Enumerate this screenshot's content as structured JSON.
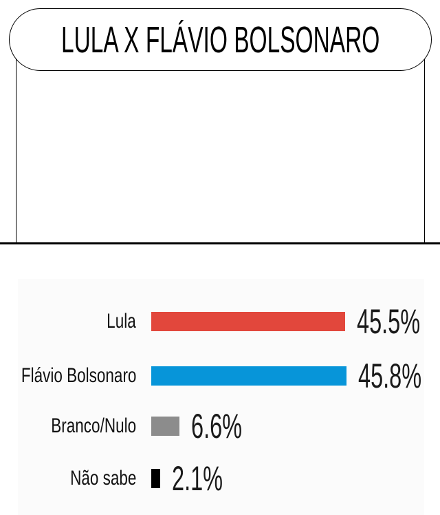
{
  "title": "LULA X FLÁVIO BOLSONARO",
  "chart_data": {
    "type": "bar",
    "orientation": "horizontal",
    "title": "LULA X FLÁVIO BOLSONARO",
    "categories": [
      "Lula",
      "Flávio Bolsonaro",
      "Branco/Nulo",
      "Não sabe"
    ],
    "values": [
      45.5,
      45.8,
      6.6,
      2.1
    ],
    "value_labels": [
      "45.5%",
      "45.8%",
      "6.6%",
      "2.1%"
    ],
    "bar_colors": [
      "#E2473C",
      "#0795D9",
      "#8C8C8C",
      "#000000"
    ],
    "xlim": [
      0,
      100
    ],
    "grid": false,
    "legend_position": "none"
  },
  "colors": {
    "red": "#E2473C",
    "blue": "#0795D9",
    "gray": "#8C8C8C",
    "black": "#000000",
    "panel_background": "#FBFBFB",
    "text": "#1A1A1A"
  }
}
